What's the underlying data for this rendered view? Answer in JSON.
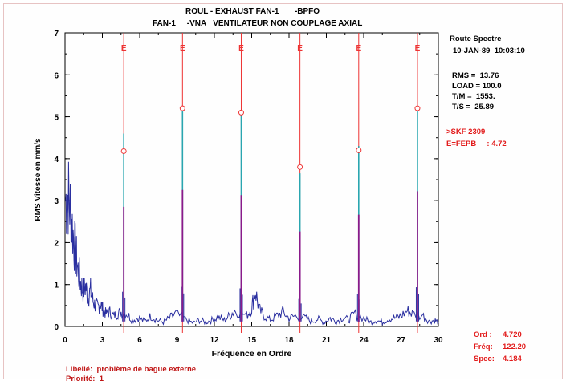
{
  "header": {
    "line1": "ROUL - EXHAUST FAN-1       -BPFO",
    "line2": "FAN-1     -VNA   VENTILATEUR NON COUPLAGE AXIAL"
  },
  "info": {
    "route_title": "Route Spectre",
    "datetime": "10-JAN-89  10:03:10",
    "rms": "RMS =  13.76",
    "load": "LOAD = 100.0",
    "tm": "T/M =  1553.",
    "ts": "T/S =  25.89",
    "bearing": ">SKF 2309",
    "fepb": "E=FEPB     : 4.72"
  },
  "cursor": {
    "ord_label": "Ord :",
    "ord_value": "4.720",
    "freq_label": "Fréq:",
    "freq_value": "122.20",
    "spec_label": "Spec:",
    "spec_value": "4.184"
  },
  "footer": {
    "libelle": "Libellé:  problème de bague externe",
    "priorite": "Priorité:  1"
  },
  "colors": {
    "spectrum": "#2a2fa0",
    "peak_upper": "#2aa6b0",
    "peak_lower": "#8a1a8a",
    "marker": "#ee3333",
    "axis": "#000000"
  },
  "chart_data": {
    "type": "line",
    "xlabel": "Fréquence en Ordre",
    "ylabel": "RMS Vitesse en mm/s",
    "xlim": [
      0,
      30
    ],
    "ylim": [
      0,
      7
    ],
    "xticks": [
      "0",
      "3",
      "6",
      "9",
      "12",
      "15",
      "18",
      "21",
      "24",
      "27",
      "30"
    ],
    "yticks": [
      "0",
      "1",
      "2",
      "3",
      "4",
      "5",
      "6",
      "7"
    ],
    "marker_label": "E",
    "markers": [
      {
        "x": 4.72,
        "y": 4.18
      },
      {
        "x": 9.44,
        "y": 5.2
      },
      {
        "x": 14.16,
        "y": 5.1
      },
      {
        "x": 18.88,
        "y": 3.8
      },
      {
        "x": 23.6,
        "y": 4.2
      },
      {
        "x": 28.32,
        "y": 5.2
      }
    ],
    "peaks": [
      {
        "x": 4.72,
        "y": 4.6
      },
      {
        "x": 9.44,
        "y": 5.25
      },
      {
        "x": 14.16,
        "y": 5.05
      },
      {
        "x": 18.88,
        "y": 3.65
      },
      {
        "x": 23.6,
        "y": 4.3
      },
      {
        "x": 28.32,
        "y": 5.2
      }
    ],
    "baseline": [
      [
        0.05,
        3.0
      ],
      [
        0.25,
        3.15
      ],
      [
        0.45,
        2.75
      ],
      [
        0.65,
        2.2
      ],
      [
        0.85,
        1.75
      ],
      [
        1.05,
        1.35
      ],
      [
        1.25,
        1.05
      ],
      [
        1.45,
        0.85
      ],
      [
        1.65,
        0.95
      ],
      [
        1.85,
        0.7
      ],
      [
        2.05,
        0.85
      ],
      [
        2.25,
        0.6
      ],
      [
        2.45,
        0.5
      ],
      [
        2.65,
        0.45
      ],
      [
        2.85,
        0.55
      ],
      [
        3.05,
        0.4
      ],
      [
        3.3,
        0.3
      ],
      [
        3.6,
        0.35
      ],
      [
        3.9,
        0.25
      ],
      [
        4.2,
        0.3
      ],
      [
        4.5,
        0.35
      ],
      [
        5.0,
        0.3
      ],
      [
        5.4,
        0.15
      ],
      [
        5.9,
        0.2
      ],
      [
        6.4,
        0.12
      ],
      [
        6.9,
        0.25
      ],
      [
        7.4,
        0.15
      ],
      [
        7.9,
        0.1
      ],
      [
        8.4,
        0.2
      ],
      [
        8.9,
        0.3
      ],
      [
        9.8,
        0.15
      ],
      [
        10.3,
        0.08
      ],
      [
        10.8,
        0.15
      ],
      [
        11.3,
        0.1
      ],
      [
        11.8,
        0.15
      ],
      [
        12.3,
        0.22
      ],
      [
        12.8,
        0.15
      ],
      [
        13.3,
        0.28
      ],
      [
        13.7,
        0.4
      ],
      [
        14.6,
        0.25
      ],
      [
        15.0,
        0.45
      ],
      [
        15.3,
        0.85
      ],
      [
        15.6,
        0.4
      ],
      [
        16.0,
        0.25
      ],
      [
        16.5,
        0.15
      ],
      [
        17.0,
        0.25
      ],
      [
        17.5,
        0.35
      ],
      [
        18.0,
        0.2
      ],
      [
        18.5,
        0.25
      ],
      [
        19.3,
        0.2
      ],
      [
        19.8,
        0.12
      ],
      [
        20.3,
        0.18
      ],
      [
        20.8,
        0.1
      ],
      [
        21.3,
        0.2
      ],
      [
        21.8,
        0.12
      ],
      [
        22.3,
        0.22
      ],
      [
        22.8,
        0.15
      ],
      [
        23.2,
        0.3
      ],
      [
        24.0,
        0.2
      ],
      [
        24.5,
        0.1
      ],
      [
        25.0,
        0.15
      ],
      [
        25.5,
        0.1
      ],
      [
        26.0,
        0.18
      ],
      [
        26.5,
        0.2
      ],
      [
        27.0,
        0.25
      ],
      [
        27.5,
        0.38
      ],
      [
        27.9,
        0.3
      ],
      [
        28.8,
        0.25
      ],
      [
        29.3,
        0.12
      ],
      [
        29.7,
        0.15
      ],
      [
        30.0,
        0.1
      ]
    ]
  }
}
